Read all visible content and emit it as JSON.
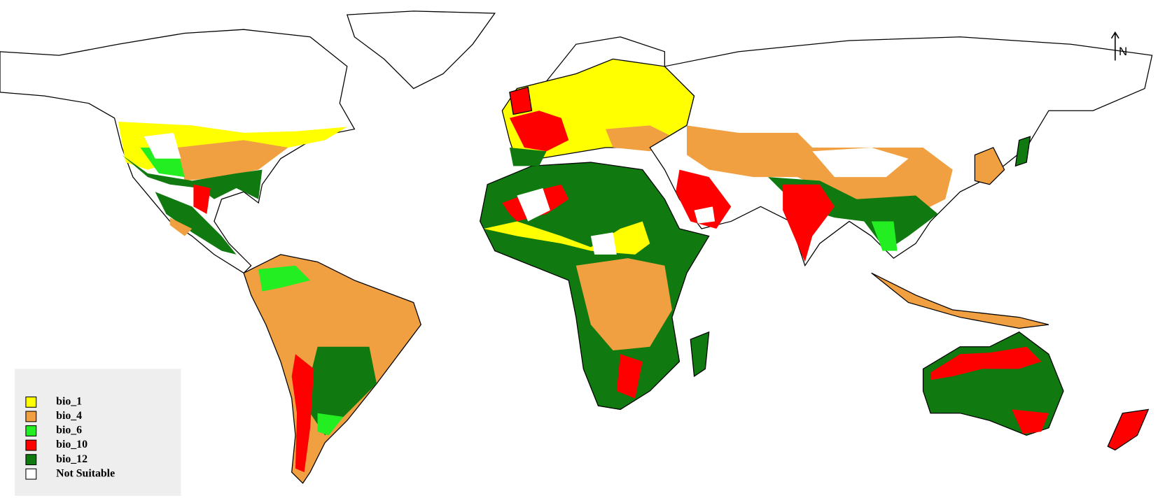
{
  "legend": {
    "items": [
      {
        "label": "bio_1",
        "color": "#ffff00"
      },
      {
        "label": "bio_4",
        "color": "#f0a040"
      },
      {
        "label": "bio_6",
        "color": "#22ee22"
      },
      {
        "label": "bio_10",
        "color": "#ff0000"
      },
      {
        "label": "bio_12",
        "color": "#107a10"
      },
      {
        "label": "Not Suitable",
        "color": "#ffffff"
      }
    ]
  },
  "north_arrow": {
    "label": "N"
  }
}
